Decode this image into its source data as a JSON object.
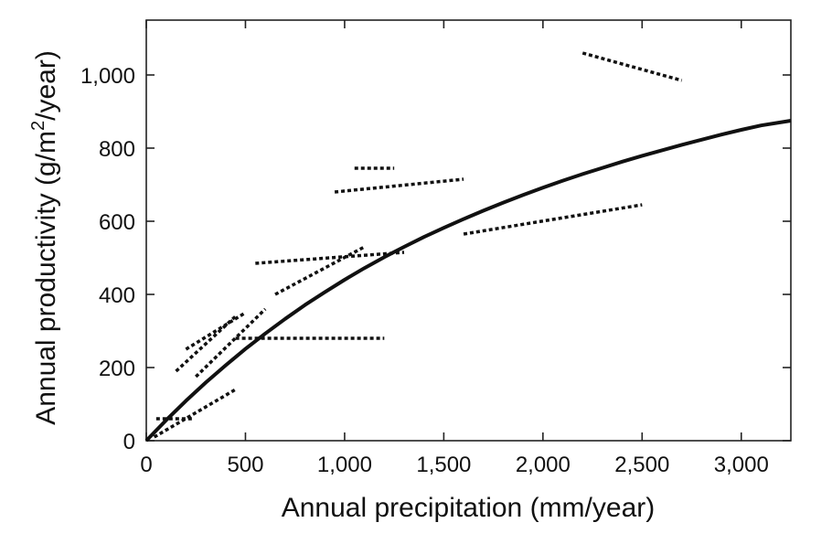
{
  "chart_data": {
    "type": "line",
    "xlabel": "Annual precipitation (mm/year)",
    "ylabel": "Annual productivity (g/m",
    "ylabel_sup": "2",
    "ylabel_tail": "/year)",
    "xlim": [
      0,
      3250
    ],
    "ylim": [
      0,
      1150
    ],
    "x_ticks": [
      0,
      500,
      1000,
      1500,
      2000,
      2500,
      3000
    ],
    "x_tick_labels": [
      "0",
      "500",
      "1,000",
      "1,500",
      "2,000",
      "2,500",
      "3,000"
    ],
    "y_ticks": [
      0,
      200,
      400,
      600,
      800,
      1000
    ],
    "y_tick_labels": [
      "0",
      "200",
      "400",
      "600",
      "800",
      "1,000"
    ],
    "grid": false,
    "line_color": "#111111",
    "series": [
      {
        "style": "solid",
        "x": [
          0,
          100,
          200,
          300,
          400,
          500,
          600,
          700,
          800,
          900,
          1000,
          1100,
          1200,
          1300,
          1400,
          1500,
          1600,
          1700,
          1800,
          1900,
          2000,
          2100,
          2200,
          2300,
          2400,
          2500,
          2600,
          2700,
          2800,
          2900,
          3000,
          3100,
          3250
        ],
        "y": [
          0,
          56,
          109,
          159,
          206,
          251,
          293,
          333,
          371,
          406,
          440,
          472,
          502,
          530,
          557,
          582,
          606,
          629,
          651,
          672,
          692,
          711,
          729,
          746,
          763,
          779,
          794,
          809,
          823,
          837,
          850,
          862,
          875
        ]
      }
    ],
    "dotted_segments": [
      {
        "x": [
          50,
          230
        ],
        "y": [
          60,
          60
        ]
      },
      {
        "x": [
          40,
          450
        ],
        "y": [
          10,
          140
        ]
      },
      {
        "x": [
          150,
          450
        ],
        "y": [
          190,
          340
        ]
      },
      {
        "x": [
          200,
          500
        ],
        "y": [
          250,
          350
        ]
      },
      {
        "x": [
          250,
          600
        ],
        "y": [
          175,
          360
        ]
      },
      {
        "x": [
          450,
          1200
        ],
        "y": [
          280,
          280
        ]
      },
      {
        "x": [
          550,
          1300
        ],
        "y": [
          485,
          515
        ]
      },
      {
        "x": [
          650,
          1100
        ],
        "y": [
          400,
          530
        ]
      },
      {
        "x": [
          950,
          1600
        ],
        "y": [
          680,
          715
        ]
      },
      {
        "x": [
          1050,
          1250
        ],
        "y": [
          745,
          745
        ]
      },
      {
        "x": [
          1600,
          2500
        ],
        "y": [
          565,
          645
        ]
      },
      {
        "x": [
          2200,
          2700
        ],
        "y": [
          1060,
          985
        ]
      }
    ]
  }
}
